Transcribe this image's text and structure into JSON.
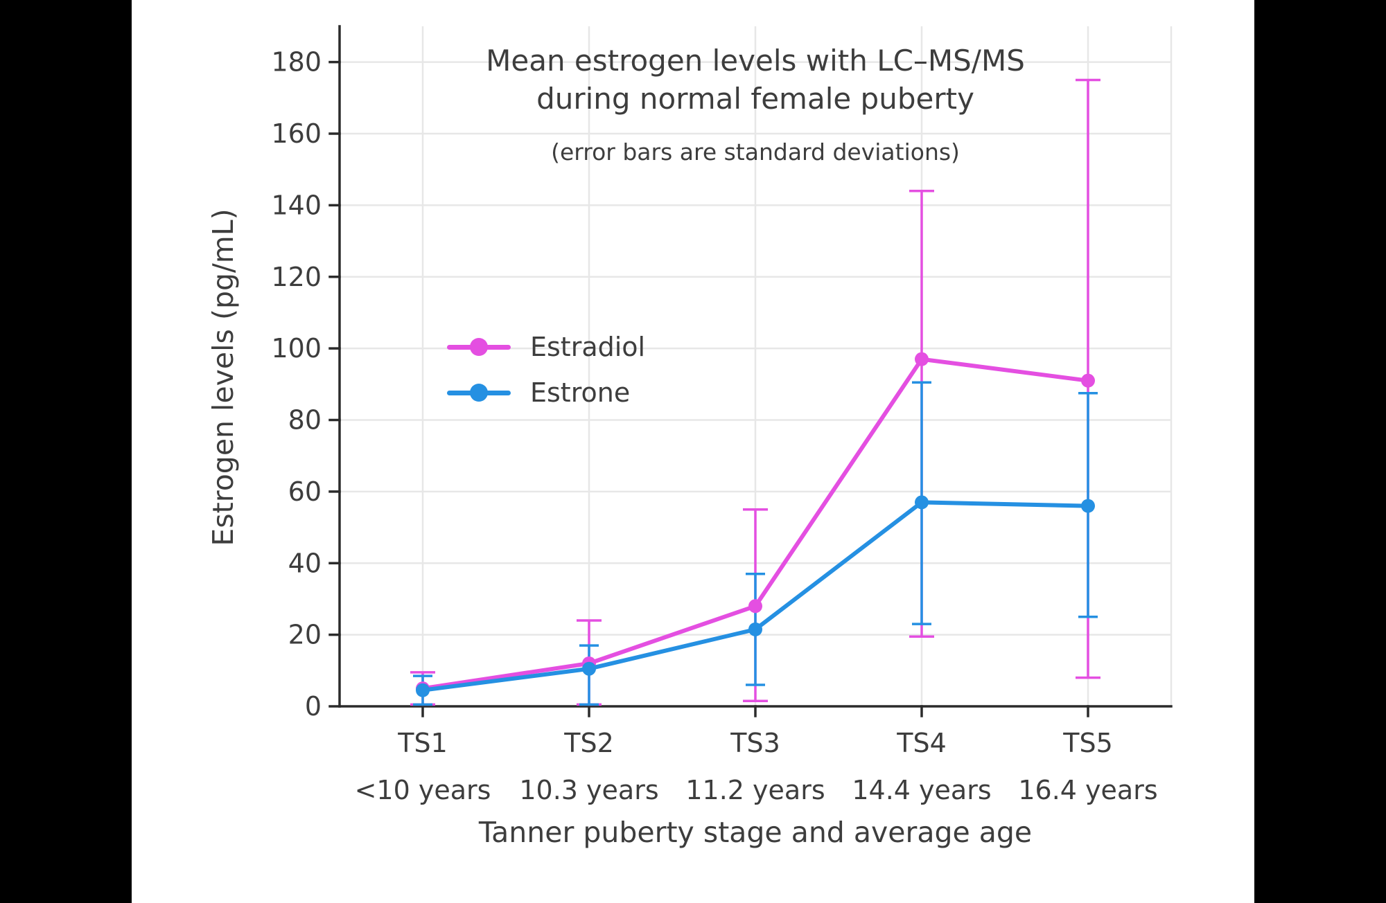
{
  "chart_data": {
    "type": "line",
    "title_lines": [
      "Mean estrogen levels with LC–MS/MS",
      "during normal female puberty"
    ],
    "subtitle": "(error bars are standard deviations)",
    "ylabel": "Estrogen levels (pg/mL)",
    "xlabel": "Tanner puberty stage and average age",
    "categories": [
      "TS1",
      "TS2",
      "TS3",
      "TS4",
      "TS5"
    ],
    "category_ages": [
      "<10 years",
      "10.3 years",
      "11.2 years",
      "14.4 years",
      "16.4 years"
    ],
    "yticks": [
      0,
      20,
      40,
      60,
      80,
      100,
      120,
      140,
      160,
      180
    ],
    "ylim": [
      0,
      190
    ],
    "grid": true,
    "legend_position": "inside-upper-left",
    "series": [
      {
        "name": "Estradiol",
        "color": "#e44fe1",
        "values": [
          5,
          12,
          28,
          97,
          91
        ],
        "err_bottom": [
          0.5,
          0.5,
          1.5,
          19.5,
          8
        ],
        "err_top": [
          9.5,
          24,
          55,
          144,
          175
        ]
      },
      {
        "name": "Estrone",
        "color": "#2590e2",
        "values": [
          4.5,
          10.5,
          21.5,
          57,
          56
        ],
        "err_bottom": [
          0.5,
          0.5,
          6,
          23,
          25
        ],
        "err_top": [
          8.5,
          17,
          37,
          90.5,
          87.5
        ]
      }
    ],
    "colors": {
      "text": "#3d3d3d",
      "grid": "#e7e7e7",
      "axis": "#2b2b2b",
      "background": "#ffffff",
      "page_background": "#000000"
    }
  }
}
